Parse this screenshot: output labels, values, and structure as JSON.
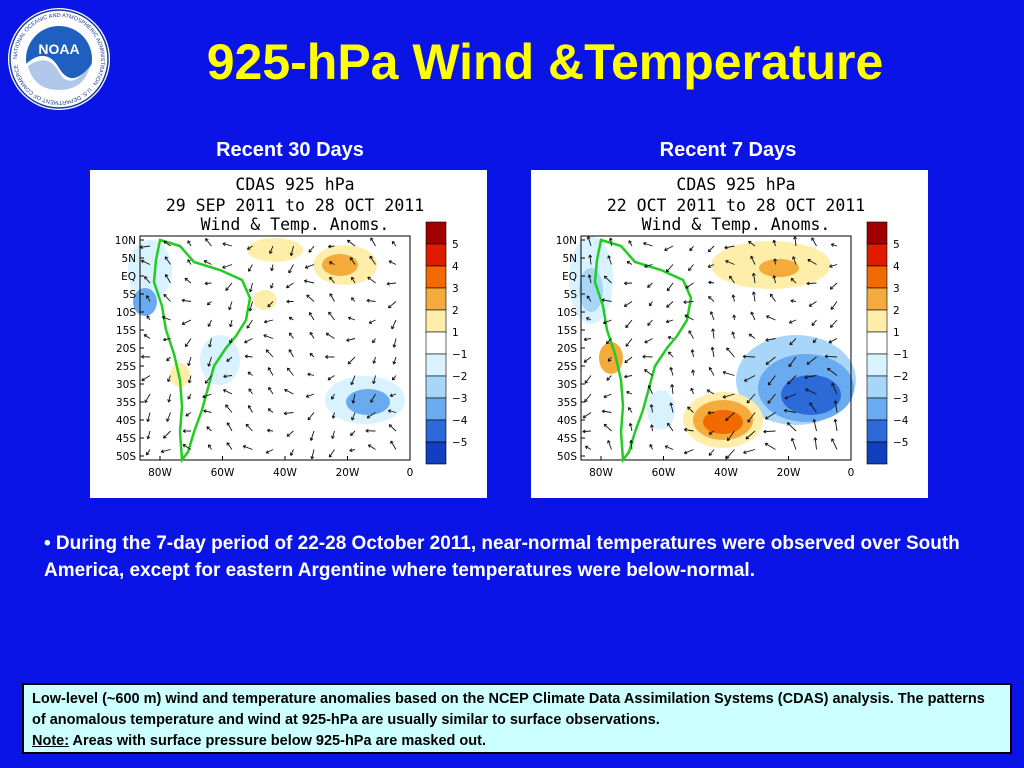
{
  "slide": {
    "title": "925-hPa Wind &Temperature",
    "logo_text": "NOAA",
    "logo_ring_text": "NATIONAL OCEANIC AND ATMOSPHERIC ADMINISTRATION · U.S. DEPARTMENT OF COMMERCE"
  },
  "panels": [
    {
      "caption": "Recent 30 Days",
      "title_lines": [
        "CDAS 925 hPa",
        "29 SEP 2011 to 28 OCT 2011",
        "Wind & Temp. Anoms."
      ]
    },
    {
      "caption": "Recent 7 Days",
      "title_lines": [
        "CDAS 925 hPa",
        "22 OCT 2011 to 28 OCT 2011",
        "Wind & Temp. Anoms."
      ]
    }
  ],
  "map_axes": {
    "lat_labels": [
      "10N",
      "5N",
      "EQ",
      "5S",
      "10S",
      "15S",
      "20S",
      "25S",
      "30S",
      "35S",
      "40S",
      "45S",
      "50S"
    ],
    "lon_labels": [
      "80W",
      "60W",
      "40W",
      "20W",
      "0"
    ]
  },
  "colorbar": {
    "labels": [
      "5",
      "4",
      "3",
      "2",
      "1",
      "−1",
      "−2",
      "−3",
      "−4",
      "−5"
    ],
    "colors": [
      "#a00000",
      "#e01c00",
      "#f06a00",
      "#f5aa3c",
      "#ffeeaa",
      "#ffffff",
      "#d8f2ff",
      "#a8d6f8",
      "#6aaaf0",
      "#2c6ad8",
      "#1040c0"
    ]
  },
  "bullet": "• During the 7-day period of 22-28 October 2011, near-normal temperatures were observed over South America, except for eastern Argentine where temperatures were below-normal.",
  "note": {
    "line1": "Low-level (~600 m) wind and temperature anomalies based on the NCEP Climate Data Assimilation Systems (CDAS) analysis. The patterns of anomalous temperature and wind at 925-hPa are usually similar to surface observations.",
    "note_label": "Note:",
    "note_text": " Areas with surface pressure below 925-hPa are masked out."
  }
}
